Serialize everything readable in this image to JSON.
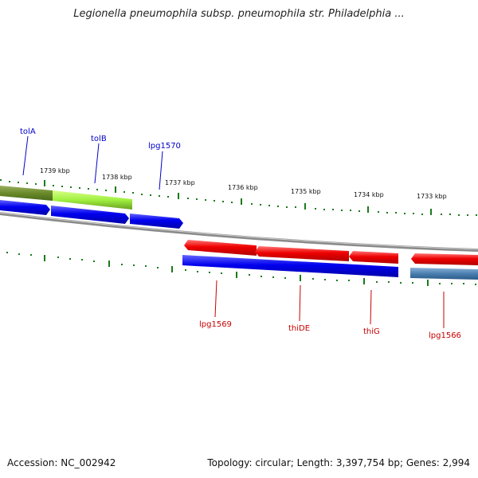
{
  "title": "Legionella pneumophila subsp. pneumophila str. Philadelphia ...",
  "footer": {
    "accession": "Accession: NC_002942",
    "summary": "Topology: circular; Length: 3,397,754 bp; Genes: 2,994"
  },
  "ticks": [
    {
      "label": "1739 kbp"
    },
    {
      "label": "1738 kbp"
    },
    {
      "label": "1737 kbp"
    },
    {
      "label": "1736 kbp"
    },
    {
      "label": "1735 kbp"
    },
    {
      "label": "1734 kbp"
    },
    {
      "label": "1733 kbp"
    }
  ],
  "genes": [
    {
      "name": "tolA",
      "strand": "forward",
      "color": "#0000c8"
    },
    {
      "name": "tolB",
      "strand": "forward",
      "color": "#0000c8"
    },
    {
      "name": "lpg1570",
      "strand": "forward",
      "color": "#0000c8"
    },
    {
      "name": "lpg1569",
      "strand": "reverse",
      "color": "#c80000"
    },
    {
      "name": "thiDE",
      "strand": "reverse",
      "color": "#c80000"
    },
    {
      "name": "thiG",
      "strand": "reverse",
      "color": "#c80000"
    },
    {
      "name": "lpg1566",
      "strand": "reverse",
      "color": "#c80000"
    }
  ],
  "colors": {
    "forward_gene": "#0000ff",
    "reverse_gene": "#ff0000",
    "highlight_green": "#a0f040",
    "dark_green": "#6a8a2a",
    "steel_blue": "#4a7fb0",
    "backbone": "#888888",
    "tick_marks": "#1a7a1a"
  }
}
